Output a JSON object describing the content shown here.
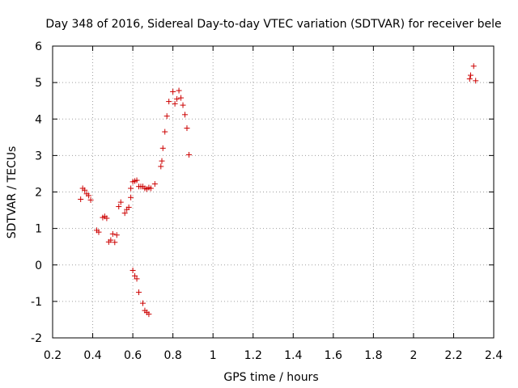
{
  "chart_data": {
    "type": "scatter",
    "title": "Day 348 of 2016, Sidereal Day-to-day VTEC variation (SDTVAR) for receiver bele",
    "xlabel": "GPS time / hours",
    "ylabel": "SDTVAR / TECUs",
    "xlim": [
      0.2,
      2.4
    ],
    "ylim": [
      -2,
      6
    ],
    "xticks": [
      0.2,
      0.4,
      0.6,
      0.8,
      1,
      1.2,
      1.4,
      1.6,
      1.8,
      2,
      2.2,
      2.4
    ],
    "xtick_labels": [
      "0.2",
      "0.4",
      "0.6",
      "0.8",
      "1",
      "1.2",
      "1.4",
      "1.6",
      "1.8",
      "2",
      "2.2",
      "2.4"
    ],
    "yticks": [
      -2,
      -1,
      0,
      1,
      2,
      3,
      4,
      5,
      6
    ],
    "ytick_labels": [
      "-2",
      "-1",
      "0",
      "1",
      "2",
      "3",
      "4",
      "5",
      "6"
    ],
    "grid": true,
    "marker": "+",
    "marker_color": "#cc0000",
    "series": [
      {
        "name": "SDTVAR",
        "x": [
          0.34,
          0.35,
          0.36,
          0.37,
          0.38,
          0.39,
          0.42,
          0.43,
          0.45,
          0.46,
          0.47,
          0.48,
          0.49,
          0.5,
          0.51,
          0.52,
          0.53,
          0.54,
          0.56,
          0.57,
          0.58,
          0.59,
          0.59,
          0.6,
          0.61,
          0.62,
          0.6,
          0.61,
          0.62,
          0.63,
          0.64,
          0.65,
          0.66,
          0.67,
          0.68,
          0.69,
          0.71,
          0.63,
          0.65,
          0.66,
          0.67,
          0.68,
          0.74,
          0.745,
          0.75,
          0.76,
          0.77,
          0.78,
          0.8,
          0.81,
          0.82,
          0.83,
          0.84,
          0.85,
          0.86,
          0.87,
          0.88,
          2.28,
          2.285,
          2.3,
          2.31
        ],
        "y": [
          1.8,
          2.1,
          2.05,
          1.95,
          1.9,
          1.78,
          0.95,
          0.9,
          1.3,
          1.33,
          1.28,
          0.63,
          0.68,
          0.85,
          0.62,
          0.82,
          1.6,
          1.72,
          1.42,
          1.52,
          1.58,
          1.85,
          2.1,
          2.28,
          2.3,
          2.32,
          -0.15,
          -0.3,
          -0.38,
          2.15,
          2.15,
          2.15,
          2.1,
          2.08,
          2.12,
          2.1,
          2.22,
          -0.75,
          -1.05,
          -1.25,
          -1.3,
          -1.35,
          2.7,
          2.85,
          3.2,
          3.65,
          4.08,
          4.48,
          4.75,
          4.42,
          4.55,
          4.78,
          4.58,
          4.38,
          4.12,
          3.75,
          3.02,
          5.1,
          5.2,
          5.45,
          5.05
        ]
      }
    ]
  }
}
